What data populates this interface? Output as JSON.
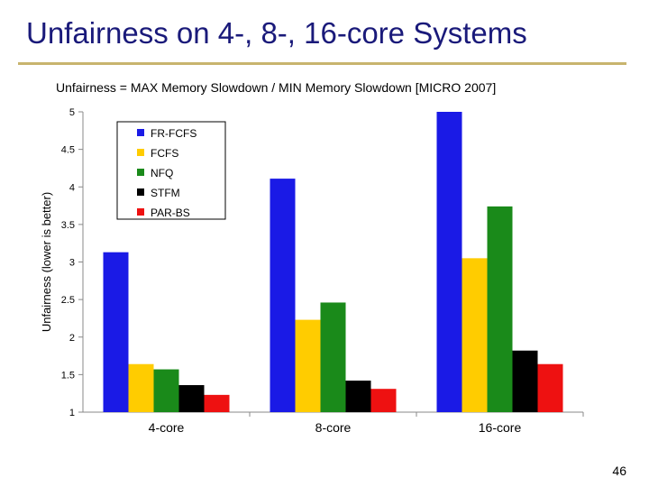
{
  "slide": {
    "title": "Unfairness on 4-, 8-, 16-core Systems",
    "subtitle": "Unfairness = MAX Memory Slowdown / MIN Memory Slowdown [MICRO 2007]",
    "number": "46"
  },
  "colors": {
    "title": "#1a1a7a",
    "rule": "#c8b46e"
  },
  "chart_data": {
    "type": "bar",
    "title": "",
    "xlabel": "",
    "ylabel": "Unfairness (lower is better)",
    "categories": [
      "4-core",
      "8-core",
      "16-core"
    ],
    "ylim": [
      1,
      5
    ],
    "yticks": [
      "1",
      "1.5",
      "2",
      "2.5",
      "3",
      "3.5",
      "4",
      "4.5",
      "5"
    ],
    "grid": false,
    "legend_position": "top-left",
    "series": [
      {
        "name": "FR-FCFS",
        "color": "#1a1ae6",
        "values": [
          3.13,
          4.11,
          5.0
        ]
      },
      {
        "name": "FCFS",
        "color": "#ffcc00",
        "values": [
          1.64,
          2.23,
          3.05
        ]
      },
      {
        "name": "NFQ",
        "color": "#1a8a1a",
        "values": [
          1.57,
          2.46,
          3.74
        ]
      },
      {
        "name": "STFM",
        "color": "#000000",
        "values": [
          1.36,
          1.42,
          1.82
        ]
      },
      {
        "name": "PAR-BS",
        "color": "#ee1111",
        "values": [
          1.23,
          1.31,
          1.64
        ]
      }
    ]
  }
}
